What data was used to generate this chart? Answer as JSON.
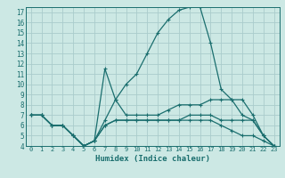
{
  "xlabel": "Humidex (Indice chaleur)",
  "bg_color": "#cce8e4",
  "grid_color": "#aacccc",
  "line_color": "#1a6e6e",
  "xlim": [
    -0.5,
    23.5
  ],
  "ylim": [
    4,
    17.5
  ],
  "xticks": [
    0,
    1,
    2,
    3,
    4,
    5,
    6,
    7,
    8,
    9,
    10,
    11,
    12,
    13,
    14,
    15,
    16,
    17,
    18,
    19,
    20,
    21,
    22,
    23
  ],
  "yticks": [
    4,
    5,
    6,
    7,
    8,
    9,
    10,
    11,
    12,
    13,
    14,
    15,
    16,
    17
  ],
  "lines": [
    {
      "x": [
        0,
        1,
        2,
        3,
        4,
        5,
        6,
        7,
        8,
        9,
        10,
        11,
        12,
        13,
        14,
        15,
        16,
        17,
        18,
        19,
        20,
        21,
        22,
        23
      ],
      "y": [
        7,
        7,
        6,
        6,
        5,
        4,
        4.5,
        11.5,
        8.5,
        7,
        7,
        7,
        7,
        7.5,
        8,
        8,
        8,
        8.5,
        8.5,
        8.5,
        8.5,
        7,
        5,
        4
      ]
    },
    {
      "x": [
        0,
        1,
        2,
        3,
        4,
        5,
        6,
        7,
        8,
        9,
        10,
        11,
        12,
        13,
        14,
        15,
        16,
        17,
        18,
        19,
        20,
        21,
        22,
        23
      ],
      "y": [
        7,
        7,
        6,
        6,
        5,
        4,
        4.5,
        6.5,
        8.5,
        10,
        11,
        13,
        15,
        16.3,
        17.2,
        17.5,
        17.5,
        14,
        9.5,
        8.5,
        7,
        6.5,
        5,
        4
      ]
    },
    {
      "x": [
        0,
        1,
        2,
        3,
        4,
        5,
        6,
        7,
        8,
        9,
        10,
        11,
        12,
        13,
        14,
        15,
        16,
        17,
        18,
        19,
        20,
        21,
        22,
        23
      ],
      "y": [
        7,
        7,
        6,
        6,
        5,
        4,
        4.5,
        6,
        6.5,
        6.5,
        6.5,
        6.5,
        6.5,
        6.5,
        6.5,
        7,
        7,
        7,
        6.5,
        6.5,
        6.5,
        6.5,
        5,
        4
      ]
    },
    {
      "x": [
        0,
        1,
        2,
        3,
        4,
        5,
        6,
        7,
        8,
        9,
        10,
        11,
        12,
        13,
        14,
        15,
        16,
        17,
        18,
        19,
        20,
        21,
        22,
        23
      ],
      "y": [
        7,
        7,
        6,
        6,
        5,
        4,
        4.5,
        6,
        6.5,
        6.5,
        6.5,
        6.5,
        6.5,
        6.5,
        6.5,
        6.5,
        6.5,
        6.5,
        6,
        5.5,
        5,
        5,
        4.5,
        4
      ]
    }
  ]
}
